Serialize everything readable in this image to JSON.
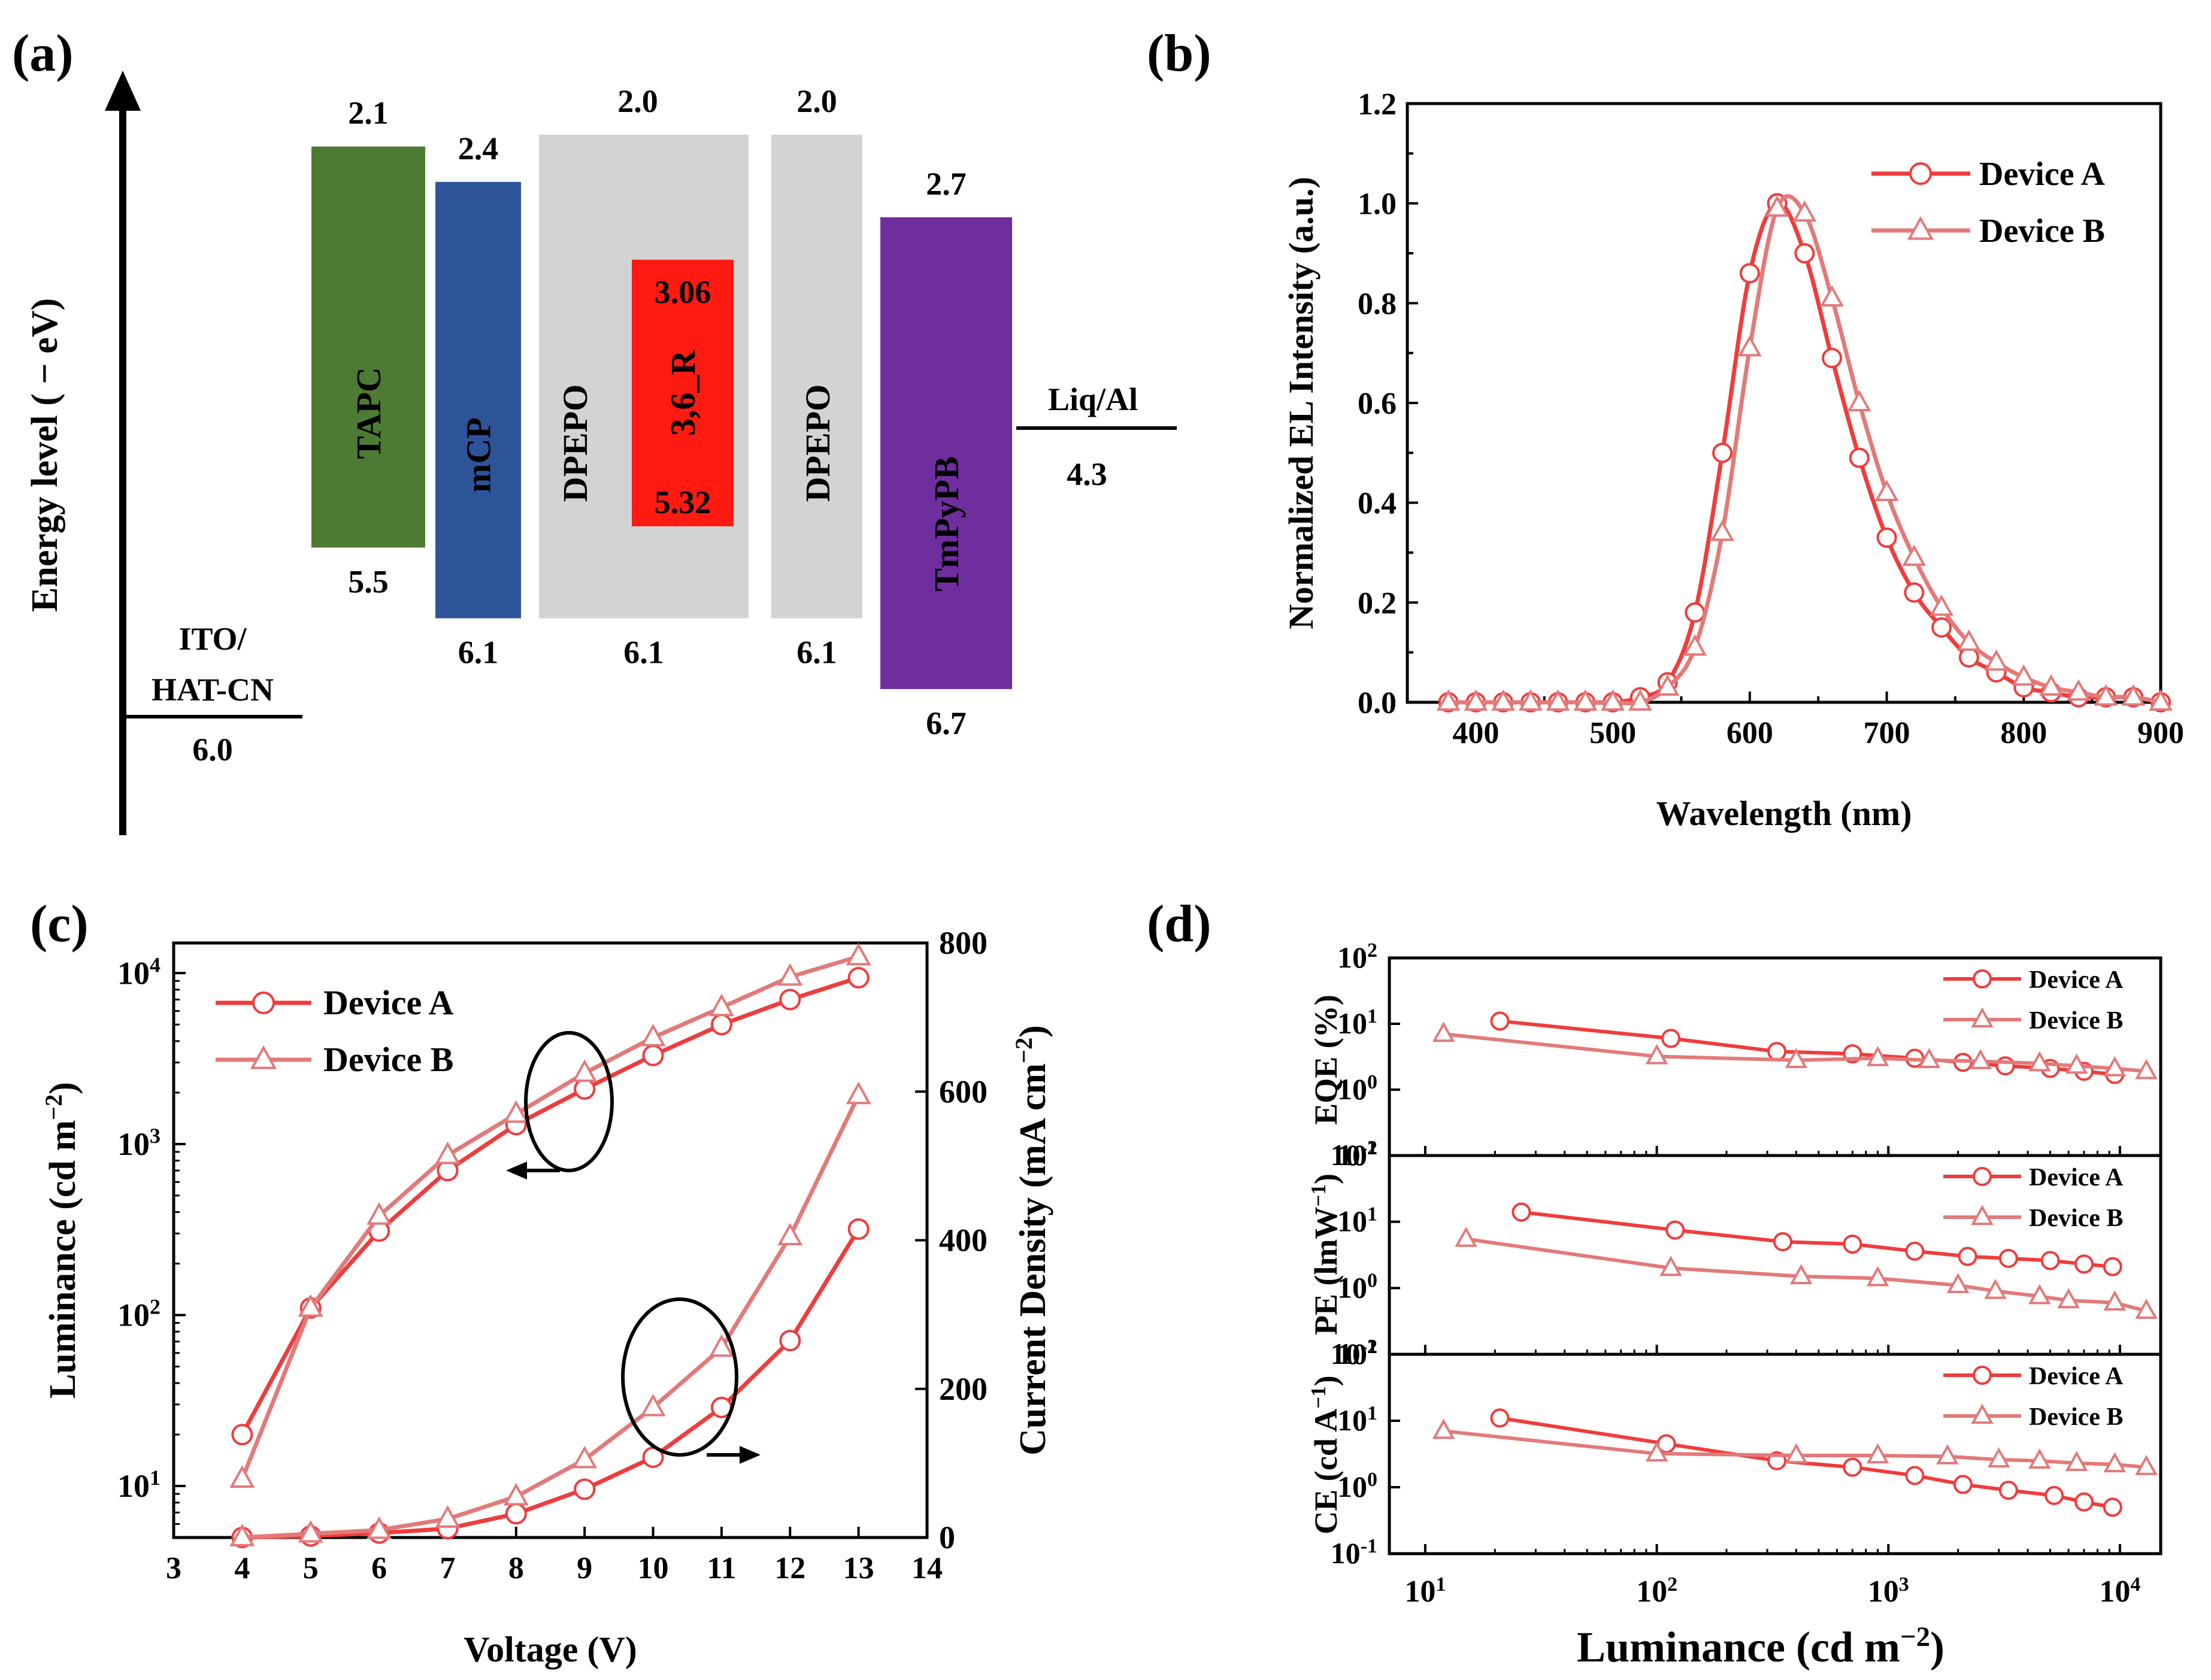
{
  "colors": {
    "device_a": "#F03C3C",
    "device_b": "#E27A7A",
    "tapc": "#4E7B33",
    "mcp": "#2D5499",
    "dpepo": "#D3D3D3",
    "emitter": "#FF1A12",
    "tmpypb": "#6F2E9E"
  },
  "chart_data": [
    {
      "panel": "(a)",
      "type": "energy_level_diagram",
      "ylabel": "Energy level ( − eV)",
      "layers": [
        {
          "name": "ITO/\nHAT-CN",
          "lines": [
            "ITO/",
            "HAT-CN"
          ],
          "work_function": "6.0",
          "kind": "line"
        },
        {
          "name": "TAPC",
          "lumo": "2.1",
          "homo": "5.5",
          "color": "tapc"
        },
        {
          "name": "mCP",
          "lumo": "2.4",
          "homo": "6.1",
          "color": "mcp"
        },
        {
          "name": "DPEPO",
          "lumo": "2.0",
          "homo": "6.1",
          "color": "dpepo"
        },
        {
          "name": "3,6_R",
          "lumo": "3.06",
          "homo": "5.32",
          "color": "emitter"
        },
        {
          "name": "DPEPO",
          "lumo": "2.0",
          "homo": "6.1",
          "color": "dpepo"
        },
        {
          "name": "TmPyPB",
          "lumo": "2.7",
          "homo": "6.7",
          "color": "tmpypb"
        },
        {
          "name": "Liq/Al",
          "work_function": "4.3",
          "kind": "line"
        }
      ]
    },
    {
      "panel": "(b)",
      "type": "line",
      "xlabel": "Wavelength (nm)",
      "ylabel": "Normalized EL Intensity (a.u.)",
      "xlim": [
        350,
        900
      ],
      "ylim": [
        0,
        1.2
      ],
      "xticks": [
        "400",
        "500",
        "600",
        "700",
        "800",
        "900"
      ],
      "yticks": [
        "0.0",
        "0.2",
        "0.4",
        "0.6",
        "0.8",
        "1.0",
        "1.2"
      ],
      "legend": "top-right",
      "series": [
        {
          "name": "Device A",
          "marker": "circle",
          "x": [
            380,
            400,
            420,
            440,
            460,
            480,
            500,
            520,
            540,
            560,
            580,
            600,
            620,
            640,
            660,
            680,
            700,
            720,
            740,
            760,
            780,
            800,
            820,
            840,
            860,
            880,
            900
          ],
          "y": [
            0,
            0,
            0,
            0,
            0,
            0,
            0,
            0.01,
            0.04,
            0.18,
            0.5,
            0.86,
            1.0,
            0.9,
            0.69,
            0.49,
            0.33,
            0.22,
            0.15,
            0.09,
            0.06,
            0.03,
            0.02,
            0.01,
            0.01,
            0.01,
            0
          ]
        },
        {
          "name": "Device B",
          "marker": "triangle",
          "x": [
            380,
            400,
            420,
            440,
            460,
            480,
            500,
            520,
            540,
            560,
            580,
            600,
            620,
            640,
            660,
            680,
            700,
            720,
            740,
            760,
            780,
            800,
            820,
            840,
            860,
            880,
            900
          ],
          "y": [
            0,
            0,
            0,
            0,
            0,
            0,
            0,
            0,
            0.03,
            0.11,
            0.34,
            0.71,
            0.99,
            0.98,
            0.81,
            0.6,
            0.42,
            0.29,
            0.19,
            0.12,
            0.08,
            0.05,
            0.03,
            0.02,
            0.01,
            0.01,
            0
          ]
        }
      ]
    },
    {
      "panel": "(c)",
      "type": "line",
      "xlabel": "Voltage (V)",
      "ylabel": "Luminance (cd m⁻²)",
      "y2label": "Current Density (mA cm⁻²)",
      "xlim": [
        3,
        14
      ],
      "ylim_log": [
        5,
        15000
      ],
      "y2lim": [
        0,
        800
      ],
      "xticks": [
        "3",
        "4",
        "5",
        "6",
        "7",
        "8",
        "9",
        "10",
        "11",
        "12",
        "13",
        "14"
      ],
      "y2ticks": [
        "0",
        "200",
        "400",
        "600",
        "800"
      ],
      "legend": "top-left",
      "series": [
        {
          "name": "Device A",
          "marker": "circle",
          "axis": "left",
          "x": [
            4,
            5,
            6,
            7,
            8,
            9,
            10,
            11,
            12,
            13
          ],
          "y": [
            20,
            110,
            310,
            700,
            1300,
            2100,
            3300,
            5000,
            7000,
            9400
          ]
        },
        {
          "name": "Device B",
          "marker": "triangle",
          "axis": "left",
          "x": [
            4,
            5,
            6,
            7,
            8,
            9,
            10,
            11,
            12,
            13
          ],
          "y": [
            11,
            110,
            380,
            860,
            1500,
            2600,
            4200,
            6300,
            9500,
            12500
          ]
        },
        {
          "name": "Device A",
          "marker": "circle",
          "axis": "right",
          "x": [
            4,
            5,
            6,
            7,
            8,
            9,
            10,
            11,
            12,
            13
          ],
          "y": [
            0,
            2,
            6,
            12,
            32,
            65,
            108,
            175,
            265,
            415
          ]
        },
        {
          "name": "Device B",
          "marker": "triangle",
          "axis": "right",
          "x": [
            4,
            5,
            6,
            7,
            8,
            9,
            10,
            11,
            12,
            13
          ],
          "y": [
            0,
            5,
            10,
            25,
            55,
            105,
            175,
            255,
            405,
            595
          ]
        }
      ]
    },
    {
      "panel": "(d)",
      "type": "line",
      "scale": "log-log",
      "xlabel": "Luminance (cd m⁻²)",
      "xlim_log": [
        7,
        15000
      ],
      "subplots": [
        {
          "ylabel": "EQE (%)",
          "series": [
            {
              "name": "Device A",
              "marker": "circle",
              "x": [
                21,
                115,
                330,
                700,
                1300,
                2100,
                3200,
                5000,
                7000,
                9500
              ],
              "y": [
                11,
                6,
                3.8,
                3.5,
                3,
                2.6,
                2.3,
                2.1,
                1.9,
                1.7
              ]
            },
            {
              "name": "Device B",
              "marker": "triangle",
              "x": [
                12,
                100,
                400,
                900,
                1500,
                2500,
                4500,
                6500,
                9500,
                13000
              ],
              "y": [
                7,
                3.2,
                2.8,
                3,
                2.8,
                2.7,
                2.5,
                2.3,
                2.1,
                1.9
              ]
            }
          ]
        },
        {
          "ylabel": "PE (lmW⁻¹)",
          "series": [
            {
              "name": "Device A",
              "marker": "circle",
              "x": [
                26,
                120,
                350,
                700,
                1300,
                2200,
                3300,
                5000,
                7000,
                9300
              ],
              "y": [
                14,
                7.5,
                5,
                4.6,
                3.6,
                3,
                2.8,
                2.6,
                2.3,
                2.1
              ]
            },
            {
              "name": "Device B",
              "marker": "triangle",
              "x": [
                15,
                115,
                420,
                900,
                2000,
                2900,
                4500,
                6000,
                9500,
                13000
              ],
              "y": [
                5.5,
                2,
                1.5,
                1.4,
                1.1,
                0.9,
                0.75,
                0.65,
                0.6,
                0.45
              ]
            }
          ]
        },
        {
          "ylabel": "CE (cd A⁻¹)",
          "series": [
            {
              "name": "Device A",
              "marker": "circle",
              "x": [
                21,
                110,
                330,
                700,
                1300,
                2100,
                3300,
                5200,
                7000,
                9300
              ],
              "y": [
                11,
                4.5,
                2.5,
                2,
                1.5,
                1.1,
                0.9,
                0.75,
                0.6,
                0.5
              ]
            },
            {
              "name": "Device B",
              "marker": "triangle",
              "x": [
                12,
                100,
                400,
                900,
                1800,
                3000,
                4500,
                6500,
                9500,
                13000
              ],
              "y": [
                7,
                3.2,
                3,
                3,
                2.9,
                2.6,
                2.5,
                2.3,
                2.2,
                2
              ]
            }
          ]
        }
      ]
    }
  ]
}
